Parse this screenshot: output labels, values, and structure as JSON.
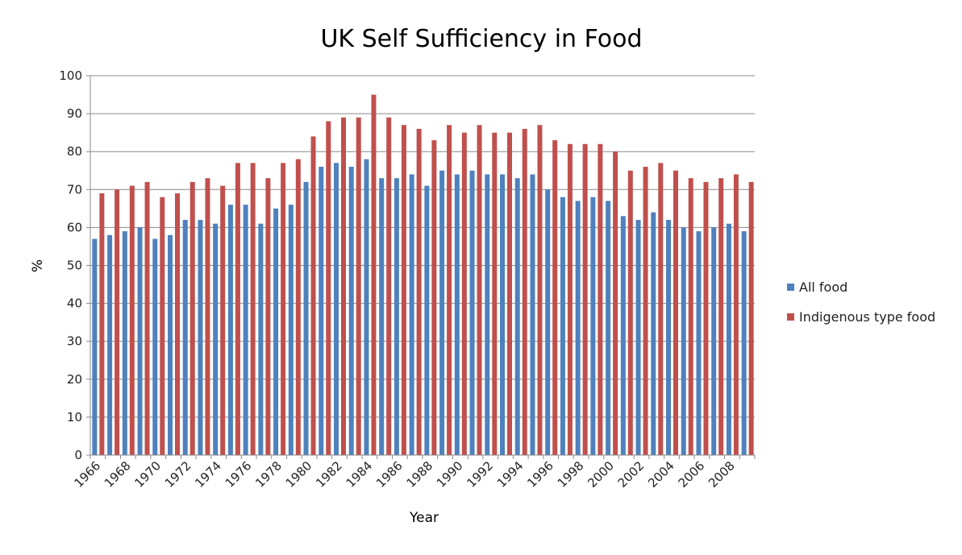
{
  "chart_data": {
    "type": "bar",
    "title": "UK Self Sufficiency in Food",
    "xlabel": "Year",
    "ylabel": "%",
    "ylim": [
      0,
      100
    ],
    "yticks": [
      0,
      10,
      20,
      30,
      40,
      50,
      60,
      70,
      80,
      90,
      100
    ],
    "grid": true,
    "legend_position": "right",
    "categories": [
      "1966",
      "1967",
      "1968",
      "1969",
      "1970",
      "1971",
      "1972",
      "1973",
      "1974",
      "1975",
      "1976",
      "1977",
      "1978",
      "1979",
      "1980",
      "1981",
      "1982",
      "1983",
      "1984",
      "1985",
      "1986",
      "1987",
      "1988",
      "1989",
      "1990",
      "1991",
      "1992",
      "1993",
      "1994",
      "1995",
      "1996",
      "1997",
      "1998",
      "1999",
      "2000",
      "2001",
      "2002",
      "2003",
      "2004",
      "2005",
      "2006",
      "2007",
      "2008",
      "2009"
    ],
    "series": [
      {
        "name": "All food",
        "color": "#4F81BD",
        "values": [
          57,
          58,
          59,
          60,
          57,
          58,
          62,
          62,
          61,
          66,
          66,
          61,
          65,
          66,
          72,
          76,
          77,
          76,
          78,
          73,
          73,
          74,
          71,
          75,
          74,
          75,
          74,
          74,
          73,
          74,
          70,
          68,
          67,
          68,
          67,
          63,
          62,
          64,
          62,
          60,
          59,
          60,
          61,
          59
        ]
      },
      {
        "name": "Indigenous type food",
        "color": "#C0504D",
        "values": [
          69,
          70,
          71,
          72,
          68,
          69,
          72,
          73,
          71,
          77,
          77,
          73,
          77,
          78,
          84,
          88,
          89,
          89,
          95,
          89,
          87,
          86,
          83,
          87,
          85,
          87,
          85,
          85,
          86,
          87,
          83,
          82,
          82,
          82,
          80,
          75,
          76,
          77,
          75,
          73,
          72,
          73,
          74,
          72
        ]
      }
    ]
  }
}
